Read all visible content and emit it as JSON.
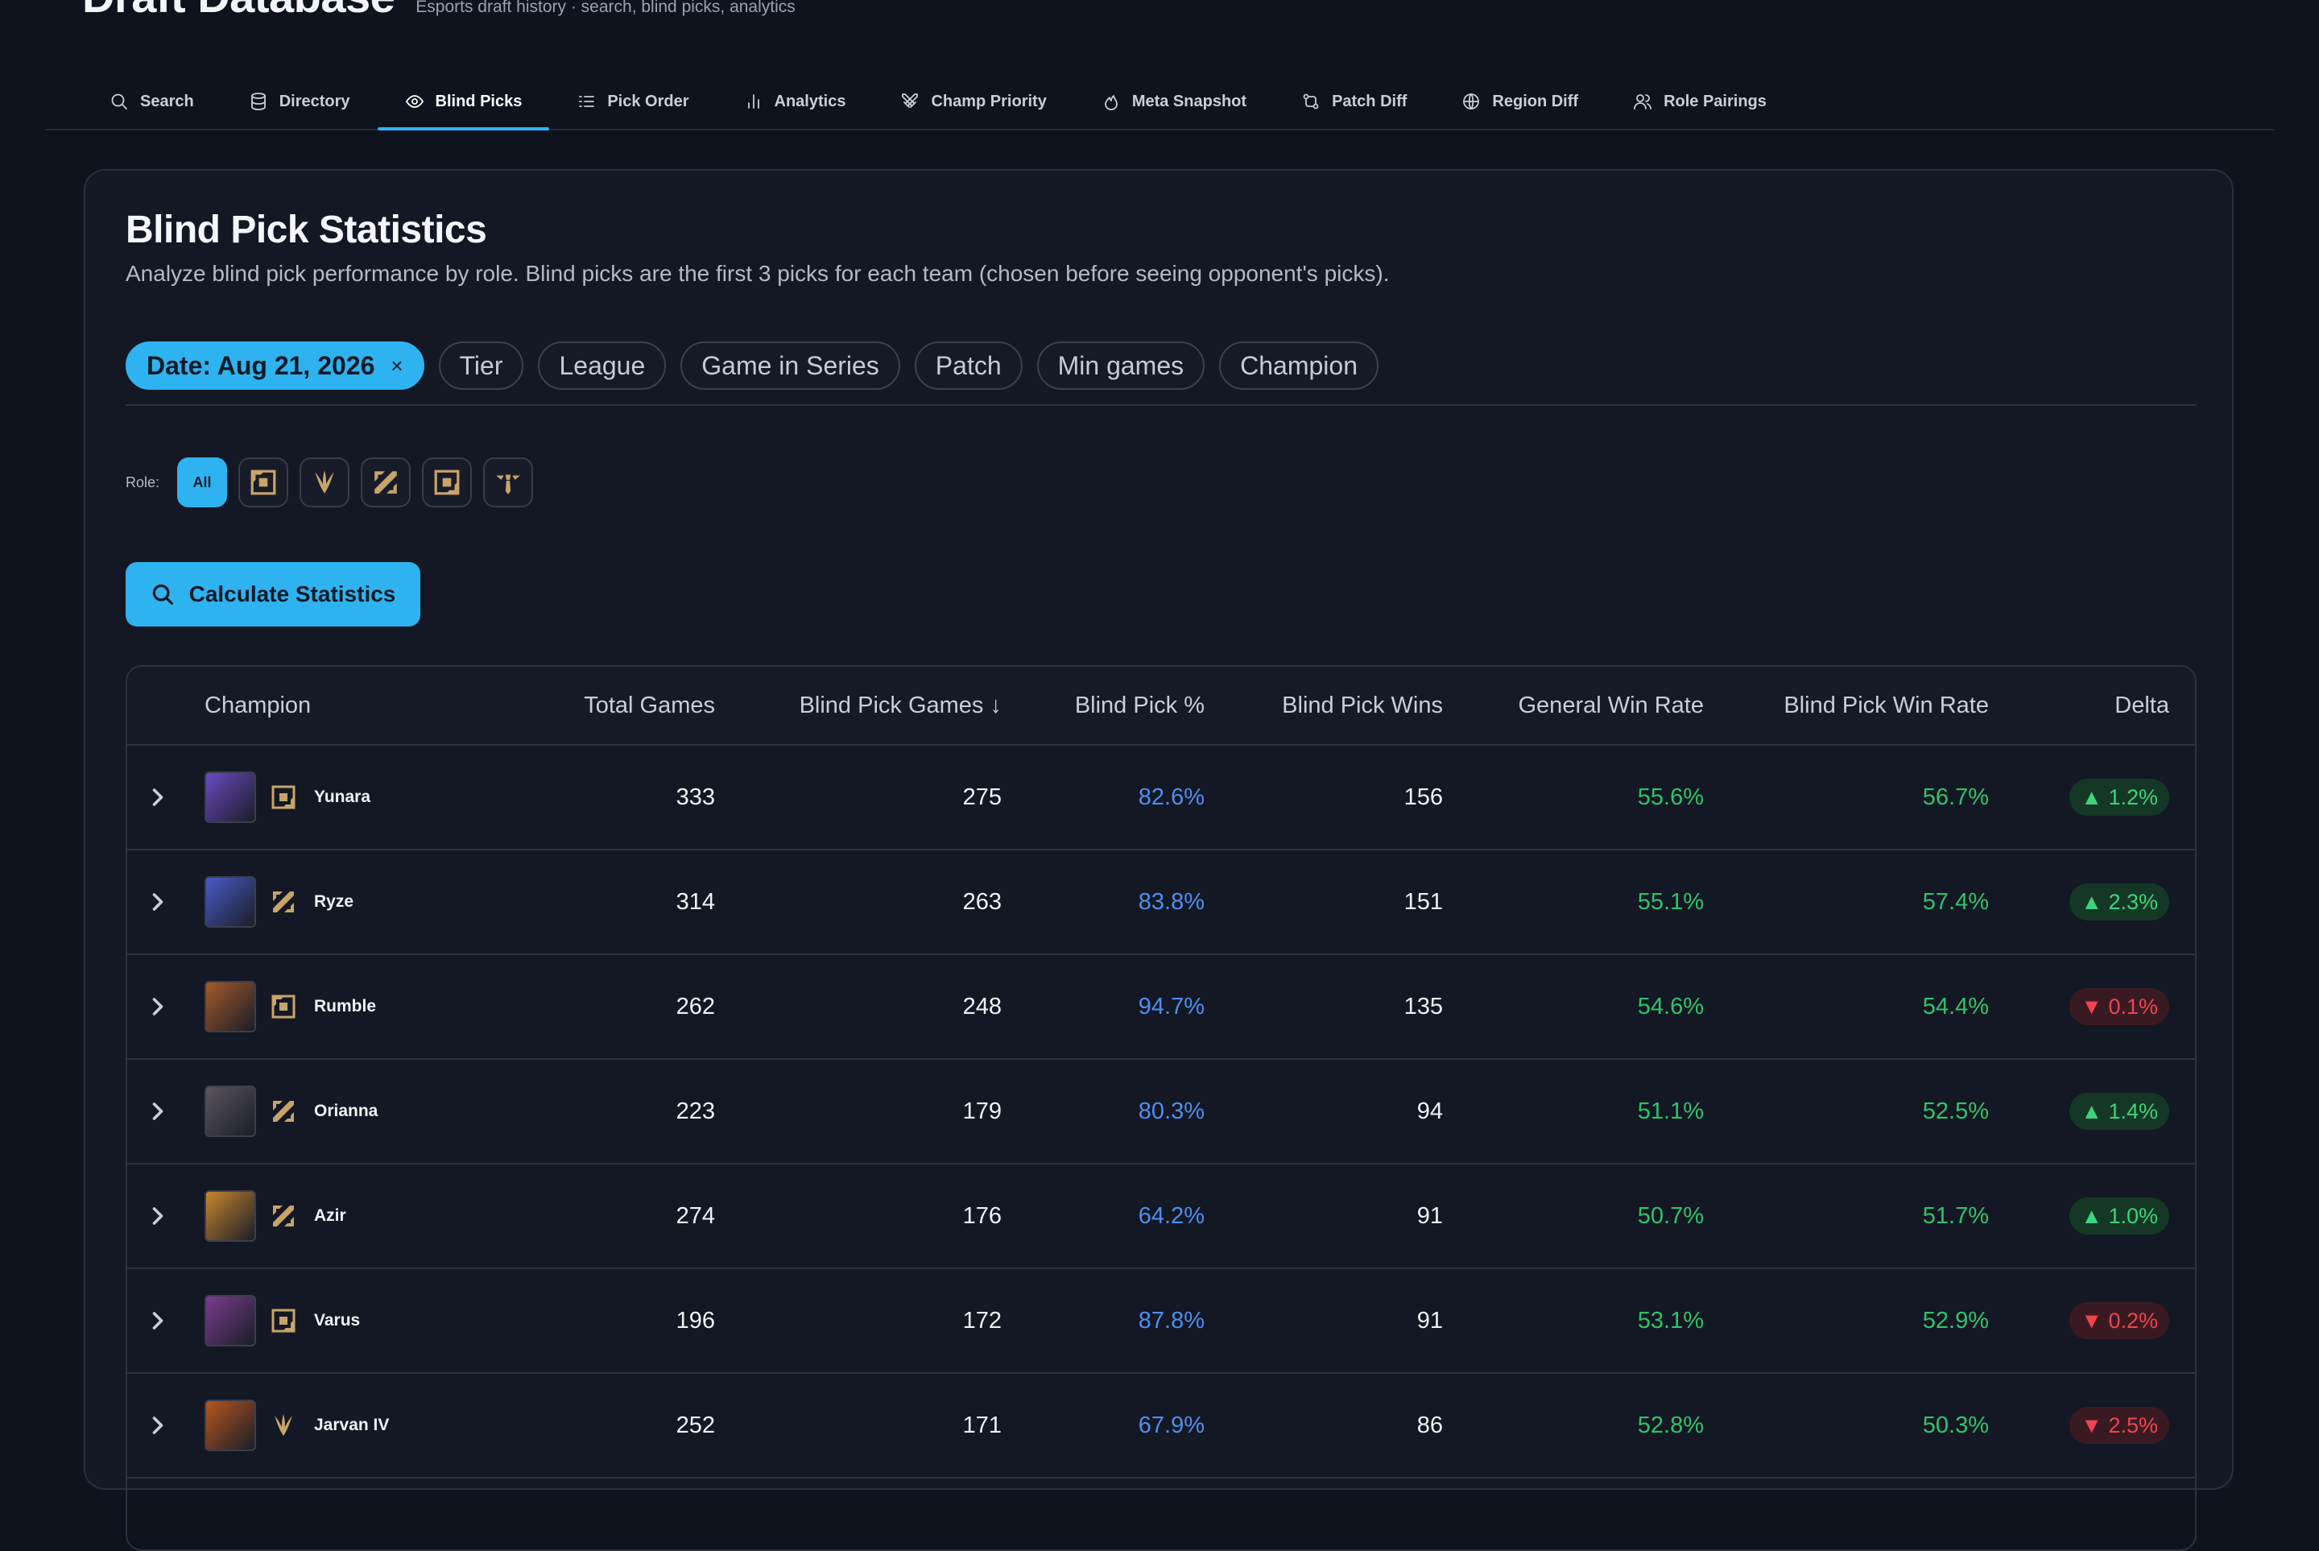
{
  "app": {
    "title": "Draft Database",
    "subtitle": "Esports draft history · search, blind picks, analytics"
  },
  "nav": {
    "tabs": [
      {
        "label": "Search",
        "icon": "search-icon"
      },
      {
        "label": "Directory",
        "icon": "database-icon"
      },
      {
        "label": "Blind Picks",
        "icon": "eye-icon",
        "active": true
      },
      {
        "label": "Pick Order",
        "icon": "list-ordered-icon"
      },
      {
        "label": "Analytics",
        "icon": "bar-chart-icon"
      },
      {
        "label": "Champ Priority",
        "icon": "crossed-swords-icon"
      },
      {
        "label": "Meta Snapshot",
        "icon": "flame-icon"
      },
      {
        "label": "Patch Diff",
        "icon": "git-compare-icon"
      },
      {
        "label": "Region Diff",
        "icon": "globe-icon"
      },
      {
        "label": "Role Pairings",
        "icon": "users-icon"
      }
    ]
  },
  "page": {
    "title": "Blind Pick Statistics",
    "description": "Analyze blind pick performance by role. Blind picks are the first 3 picks for each team (chosen before seeing opponent's picks).",
    "filters": {
      "active_chip": "Date: Aug 21, 2026",
      "clear_symbol": "×",
      "chips": [
        "Tier",
        "League",
        "Game in Series",
        "Patch",
        "Min games",
        "Champion"
      ]
    },
    "roles": {
      "label": "Role:",
      "all_label": "All",
      "buttons": [
        "top-role-icon",
        "jungle-role-icon",
        "mid-role-icon",
        "bot-role-icon",
        "support-role-icon"
      ]
    },
    "calculate_label": "Calculate Statistics"
  },
  "table": {
    "headers": {
      "champion": "Champion",
      "total_games": "Total Games",
      "blind_pick_games": "Blind Pick Games ↓",
      "blind_pick_pct": "Blind Pick %",
      "blind_pick_wins": "Blind Pick Wins",
      "general_win_rate": "General Win Rate",
      "blind_pick_win_rate": "Blind Pick Win Rate",
      "delta": "Delta"
    },
    "rows": [
      {
        "champion": "Yunara",
        "role": "bot-role-icon",
        "total": "333",
        "bp_games": "275",
        "bp_pct": "82.6%",
        "bp_wins": "156",
        "gen_wr": "55.6%",
        "bp_wr": "56.7%",
        "delta": "▲ 1.2%",
        "dir": "up",
        "avatar_color": "#6b4bc2"
      },
      {
        "champion": "Ryze",
        "role": "mid-role-icon",
        "total": "314",
        "bp_games": "263",
        "bp_pct": "83.8%",
        "bp_wins": "151",
        "gen_wr": "55.1%",
        "bp_wr": "57.4%",
        "delta": "▲ 2.3%",
        "dir": "up",
        "avatar_color": "#4a5bc8"
      },
      {
        "champion": "Rumble",
        "role": "top-role-icon",
        "total": "262",
        "bp_games": "248",
        "bp_pct": "94.7%",
        "bp_wins": "135",
        "gen_wr": "54.6%",
        "bp_wr": "54.4%",
        "delta": "▼ 0.1%",
        "dir": "down",
        "avatar_color": "#a45a2a"
      },
      {
        "champion": "Orianna",
        "role": "mid-role-icon",
        "total": "223",
        "bp_games": "179",
        "bp_pct": "80.3%",
        "bp_wins": "94",
        "gen_wr": "51.1%",
        "bp_wr": "52.5%",
        "delta": "▲ 1.4%",
        "dir": "up",
        "avatar_color": "#5b5660"
      },
      {
        "champion": "Azir",
        "role": "mid-role-icon",
        "total": "274",
        "bp_games": "176",
        "bp_pct": "64.2%",
        "bp_wins": "91",
        "gen_wr": "50.7%",
        "bp_wr": "51.7%",
        "delta": "▲ 1.0%",
        "dir": "up",
        "avatar_color": "#c8862e"
      },
      {
        "champion": "Varus",
        "role": "bot-role-icon",
        "total": "196",
        "bp_games": "172",
        "bp_pct": "87.8%",
        "bp_wins": "91",
        "gen_wr": "53.1%",
        "bp_wr": "52.9%",
        "delta": "▼ 0.2%",
        "dir": "down",
        "avatar_color": "#7a3d8c"
      },
      {
        "champion": "Jarvan IV",
        "role": "jungle-role-icon",
        "total": "252",
        "bp_games": "171",
        "bp_pct": "67.9%",
        "bp_wins": "86",
        "gen_wr": "52.8%",
        "bp_wr": "50.3%",
        "delta": "▼ 2.5%",
        "dir": "down",
        "avatar_color": "#b5561f"
      }
    ]
  },
  "colors": {
    "accent": "#2fb3f0",
    "blue_value": "#4d8ff0",
    "green_value": "#2fc46a",
    "delta_up": "#3bd57a",
    "delta_down": "#f0444f",
    "role_gold": "#c8a46a"
  }
}
